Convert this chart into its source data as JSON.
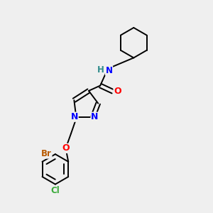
{
  "background_color": "#efefef",
  "bond_color": "#000000",
  "atom_colors": {
    "N": "#0000ff",
    "O": "#ff0000",
    "Br": "#b85a00",
    "Cl": "#3aaa3a",
    "H": "#2e8b8b",
    "C": "#000000"
  },
  "figsize": [
    3.0,
    3.0
  ],
  "dpi": 100
}
